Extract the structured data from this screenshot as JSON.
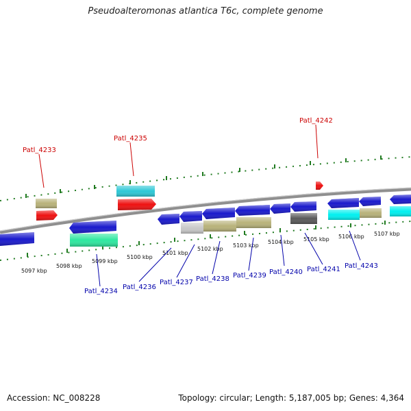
{
  "title": "Pseudoalteromonas atlantica T6c, complete genome",
  "footer": {
    "accession": "Accession: NC_008228",
    "summary": "Topology: circular; Length: 5,187,005 bp; Genes: 4,364"
  },
  "colors": {
    "background": "#ffffff",
    "backbone": "#8f8f8f",
    "tick": "#1f7a1f",
    "cds_blue": "#1a1acc",
    "cds_olive": "#b8b27a",
    "cds_cyan": "#2ec8d6",
    "cds_red": "#ee1111",
    "cds_green": "#2ee8a0",
    "cds_gray": "#5a5a5a",
    "cds_silver": "#c8c8c8",
    "label_forward": "#cc0000",
    "label_reverse": "#0000aa",
    "scale_text": "#111111"
  },
  "scale_labels": [
    "5097 kbp",
    "5098 kbp",
    "5099 kbp",
    "5100 kbp",
    "5101 kbp",
    "5102 kbp",
    "5103 kbp",
    "5104 kbp",
    "5105 kbp",
    "5106 kbp",
    "5107 kbp"
  ],
  "forward_labels": [
    "Patl_4233",
    "Patl_4235",
    "Patl_4242"
  ],
  "reverse_labels": [
    "Patl_4234",
    "Patl_4236",
    "Patl_4237",
    "Patl_4238",
    "Patl_4239",
    "Patl_4240",
    "Patl_4241",
    "Patl_4243"
  ]
}
